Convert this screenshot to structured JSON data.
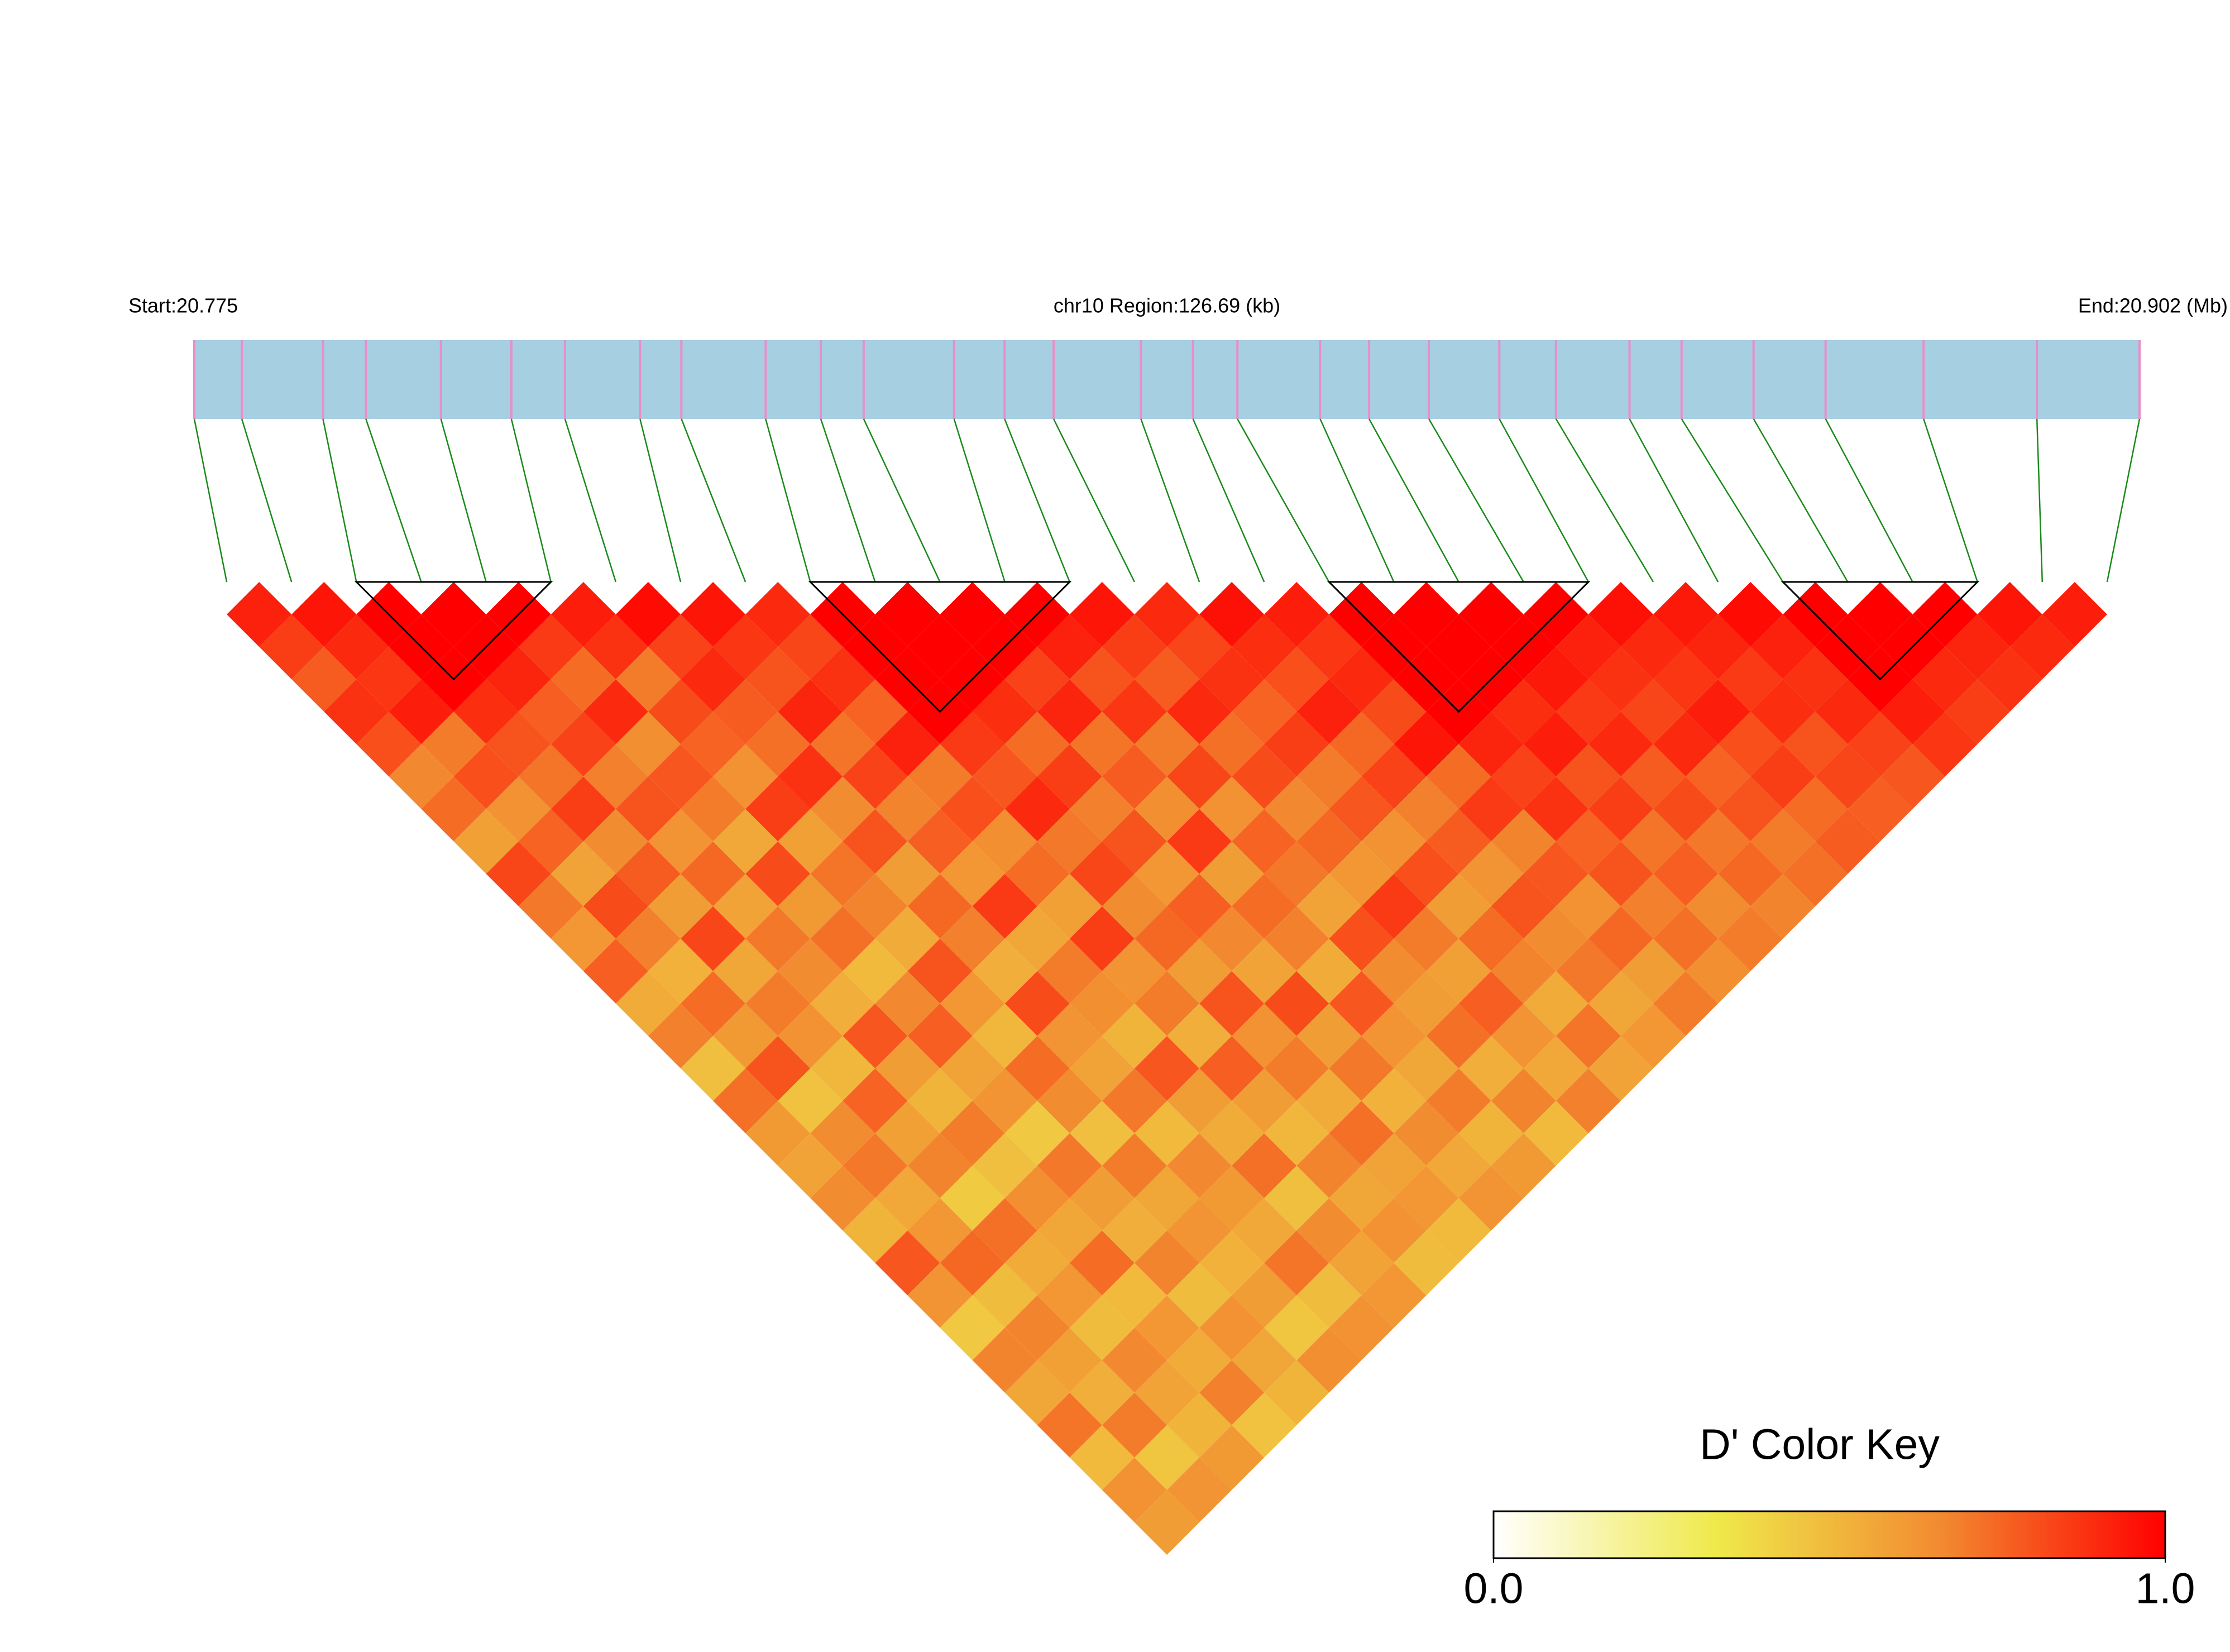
{
  "chart_data": {
    "type": "ld-heatmap",
    "title": "chr10 Region:126.69 (kb)",
    "start_label": "Start:20.775",
    "end_label": "End:20.902 (Mb)",
    "xlim": [
      20.775,
      20.902
    ],
    "x": [
      20.775,
      20.7781,
      20.7834,
      20.7862,
      20.7911,
      20.7957,
      20.7992,
      20.8041,
      20.8068,
      20.8123,
      20.8159,
      20.8187,
      20.8246,
      20.8279,
      20.8311,
      20.8368,
      20.8402,
      20.8431,
      20.8485,
      20.8517,
      20.8556,
      20.8602,
      20.8639,
      20.8687,
      20.8721,
      20.8768,
      20.8815,
      20.8879,
      20.8953,
      20.902
    ],
    "values": [
      [
        0.92,
        0.85,
        0.78,
        0.88,
        0.81,
        0.67,
        0.74,
        0.59,
        0.83,
        0.71,
        0.62,
        0.77,
        0.55,
        0.69,
        0.48,
        0.73,
        0.61,
        0.58,
        0.66,
        0.52,
        0.79,
        0.63,
        0.45,
        0.68,
        0.57,
        0.72,
        0.5,
        0.64,
        0.6
      ],
      [
        0.95,
        0.9,
        0.87,
        0.93,
        0.7,
        0.81,
        0.64,
        0.76,
        0.58,
        0.82,
        0.69,
        0.53,
        0.74,
        0.61,
        0.8,
        0.47,
        0.66,
        0.71,
        0.56,
        0.62,
        0.75,
        0.49,
        0.68,
        0.59,
        0.54,
        0.7,
        0.46,
        0.63
      ],
      [
        1,
        1,
        1,
        0.89,
        0.8,
        0.72,
        0.85,
        0.66,
        0.78,
        0.6,
        0.83,
        0.57,
        0.7,
        0.64,
        0.51,
        0.76,
        0.59,
        0.68,
        0.44,
        0.73,
        0.55,
        0.62,
        0.49,
        0.67,
        0.58,
        0.52,
        0.61
      ],
      [
        1,
        1,
        0.91,
        0.77,
        0.84,
        0.69,
        0.8,
        0.63,
        0.75,
        0.58,
        0.71,
        0.66,
        0.54,
        0.79,
        0.6,
        0.52,
        0.7,
        0.48,
        0.65,
        0.57,
        0.74,
        0.5,
        0.62,
        0.55,
        0.69,
        0.47
      ],
      [
        1,
        0.86,
        0.74,
        0.9,
        0.65,
        0.79,
        0.7,
        0.56,
        0.82,
        0.61,
        0.73,
        0.5,
        0.67,
        0.77,
        0.58,
        0.63,
        0.45,
        0.71,
        0.6,
        0.54,
        0.68,
        0.49,
        0.64,
        0.57,
        0.52
      ],
      [
        0.93,
        0.88,
        0.7,
        0.82,
        0.76,
        0.64,
        0.85,
        0.59,
        0.72,
        0.68,
        0.55,
        0.8,
        0.62,
        0.51,
        0.74,
        0.66,
        0.48,
        0.7,
        0.57,
        0.63,
        0.53,
        0.6,
        0.46,
        0.65
      ],
      [
        0.97,
        0.84,
        0.9,
        0.78,
        0.73,
        0.88,
        0.66,
        0.8,
        0.6,
        0.75,
        0.69,
        0.54,
        0.82,
        0.63,
        0.58,
        0.71,
        0.5,
        0.67,
        0.61,
        0.56,
        0.72,
        0.49,
        0.64
      ],
      [
        0.95,
        0.87,
        0.8,
        0.91,
        0.72,
        0.84,
        0.68,
        0.77,
        0.62,
        0.86,
        0.57,
        0.7,
        0.65,
        0.52,
        0.79,
        0.6,
        0.55,
        0.73,
        0.48,
        0.66,
        0.58,
        0.62
      ],
      [
        0.9,
        0.83,
        0.88,
        0.76,
        0.92,
        0.7,
        0.81,
        0.65,
        0.74,
        0.59,
        0.85,
        0.63,
        0.7,
        0.54,
        0.77,
        0.6,
        0.51,
        0.68,
        0.57,
        0.64,
        0.49
      ],
      [
        1,
        1,
        1,
        1,
        0.86,
        0.79,
        0.9,
        0.71,
        0.83,
        0.66,
        0.75,
        0.6,
        0.8,
        0.64,
        0.7,
        0.55,
        0.73,
        0.58,
        0.62,
        0.5
      ],
      [
        1,
        1,
        1,
        0.89,
        0.74,
        0.85,
        0.69,
        0.8,
        0.62,
        0.77,
        0.67,
        0.58,
        0.82,
        0.6,
        0.71,
        0.53,
        0.66,
        0.56,
        0.63
      ],
      [
        1,
        1,
        0.84,
        0.91,
        0.72,
        0.78,
        0.65,
        0.86,
        0.6,
        0.74,
        0.69,
        0.55,
        0.79,
        0.63,
        0.57,
        0.7,
        0.52,
        0.61
      ],
      [
        1,
        0.92,
        0.8,
        0.87,
        0.7,
        0.83,
        0.64,
        0.76,
        0.71,
        0.58,
        0.81,
        0.66,
        0.6,
        0.73,
        0.54,
        0.68,
        0.5
      ],
      [
        0.95,
        0.85,
        0.78,
        0.9,
        0.73,
        0.82,
        0.67,
        0.75,
        0.62,
        0.86,
        0.7,
        0.59,
        0.77,
        0.63,
        0.56,
        0.69
      ],
      [
        0.9,
        0.83,
        0.88,
        0.76,
        0.85,
        0.7,
        0.79,
        0.64,
        0.81,
        0.6,
        0.74,
        0.68,
        0.55,
        0.72,
        0.58
      ],
      [
        0.96,
        0.89,
        0.81,
        0.92,
        0.75,
        0.84,
        0.69,
        0.78,
        0.63,
        0.8,
        0.66,
        0.71,
        0.57,
        0.62
      ],
      [
        0.93,
        0.87,
        0.9,
        0.82,
        0.95,
        0.74,
        0.86,
        0.68,
        0.79,
        0.64,
        0.75,
        0.6,
        0.7
      ],
      [
        1,
        1,
        1,
        1,
        0.91,
        0.84,
        0.88,
        0.76,
        0.8,
        0.69,
        0.73,
        0.65
      ],
      [
        1,
        1,
        1,
        0.89,
        0.93,
        0.8,
        0.85,
        0.72,
        0.77,
        0.66,
        0.7
      ],
      [
        1,
        1,
        0.94,
        0.86,
        0.9,
        0.78,
        0.82,
        0.71,
        0.75,
        0.68
      ],
      [
        1,
        0.92,
        0.88,
        0.83,
        0.9,
        0.76,
        0.8,
        0.7,
        0.73
      ],
      [
        0.96,
        0.9,
        0.87,
        0.93,
        0.81,
        0.85,
        0.74,
        0.78
      ],
      [
        0.94,
        0.91,
        0.86,
        0.89,
        0.8,
        0.83,
        0.77
      ],
      [
        0.97,
        0.92,
        0.88,
        0.9,
        0.84,
        0.79
      ],
      [
        1,
        1,
        1,
        0.93,
        0.87
      ],
      [
        1,
        1,
        0.9,
        0.85
      ],
      [
        1,
        0.91,
        0.88
      ],
      [
        0.95,
        0.9
      ],
      [
        0.93
      ]
    ],
    "blocks": [
      [
        2,
        5
      ],
      [
        9,
        13
      ],
      [
        17,
        21
      ],
      [
        24,
        27
      ]
    ],
    "track_color": "#a6cfe2",
    "snp_color": "#e88fc7",
    "link_color": "#1a8a1a",
    "colors": [
      "#ffffff",
      "#efe94a",
      "#f28a30",
      "#ff0000"
    ],
    "colorbar_title": "D' Color Key",
    "clim": [
      0,
      1
    ],
    "cticks": [
      {
        "value": 0,
        "label": "0.0"
      },
      {
        "value": 1,
        "label": "1.0"
      }
    ]
  }
}
